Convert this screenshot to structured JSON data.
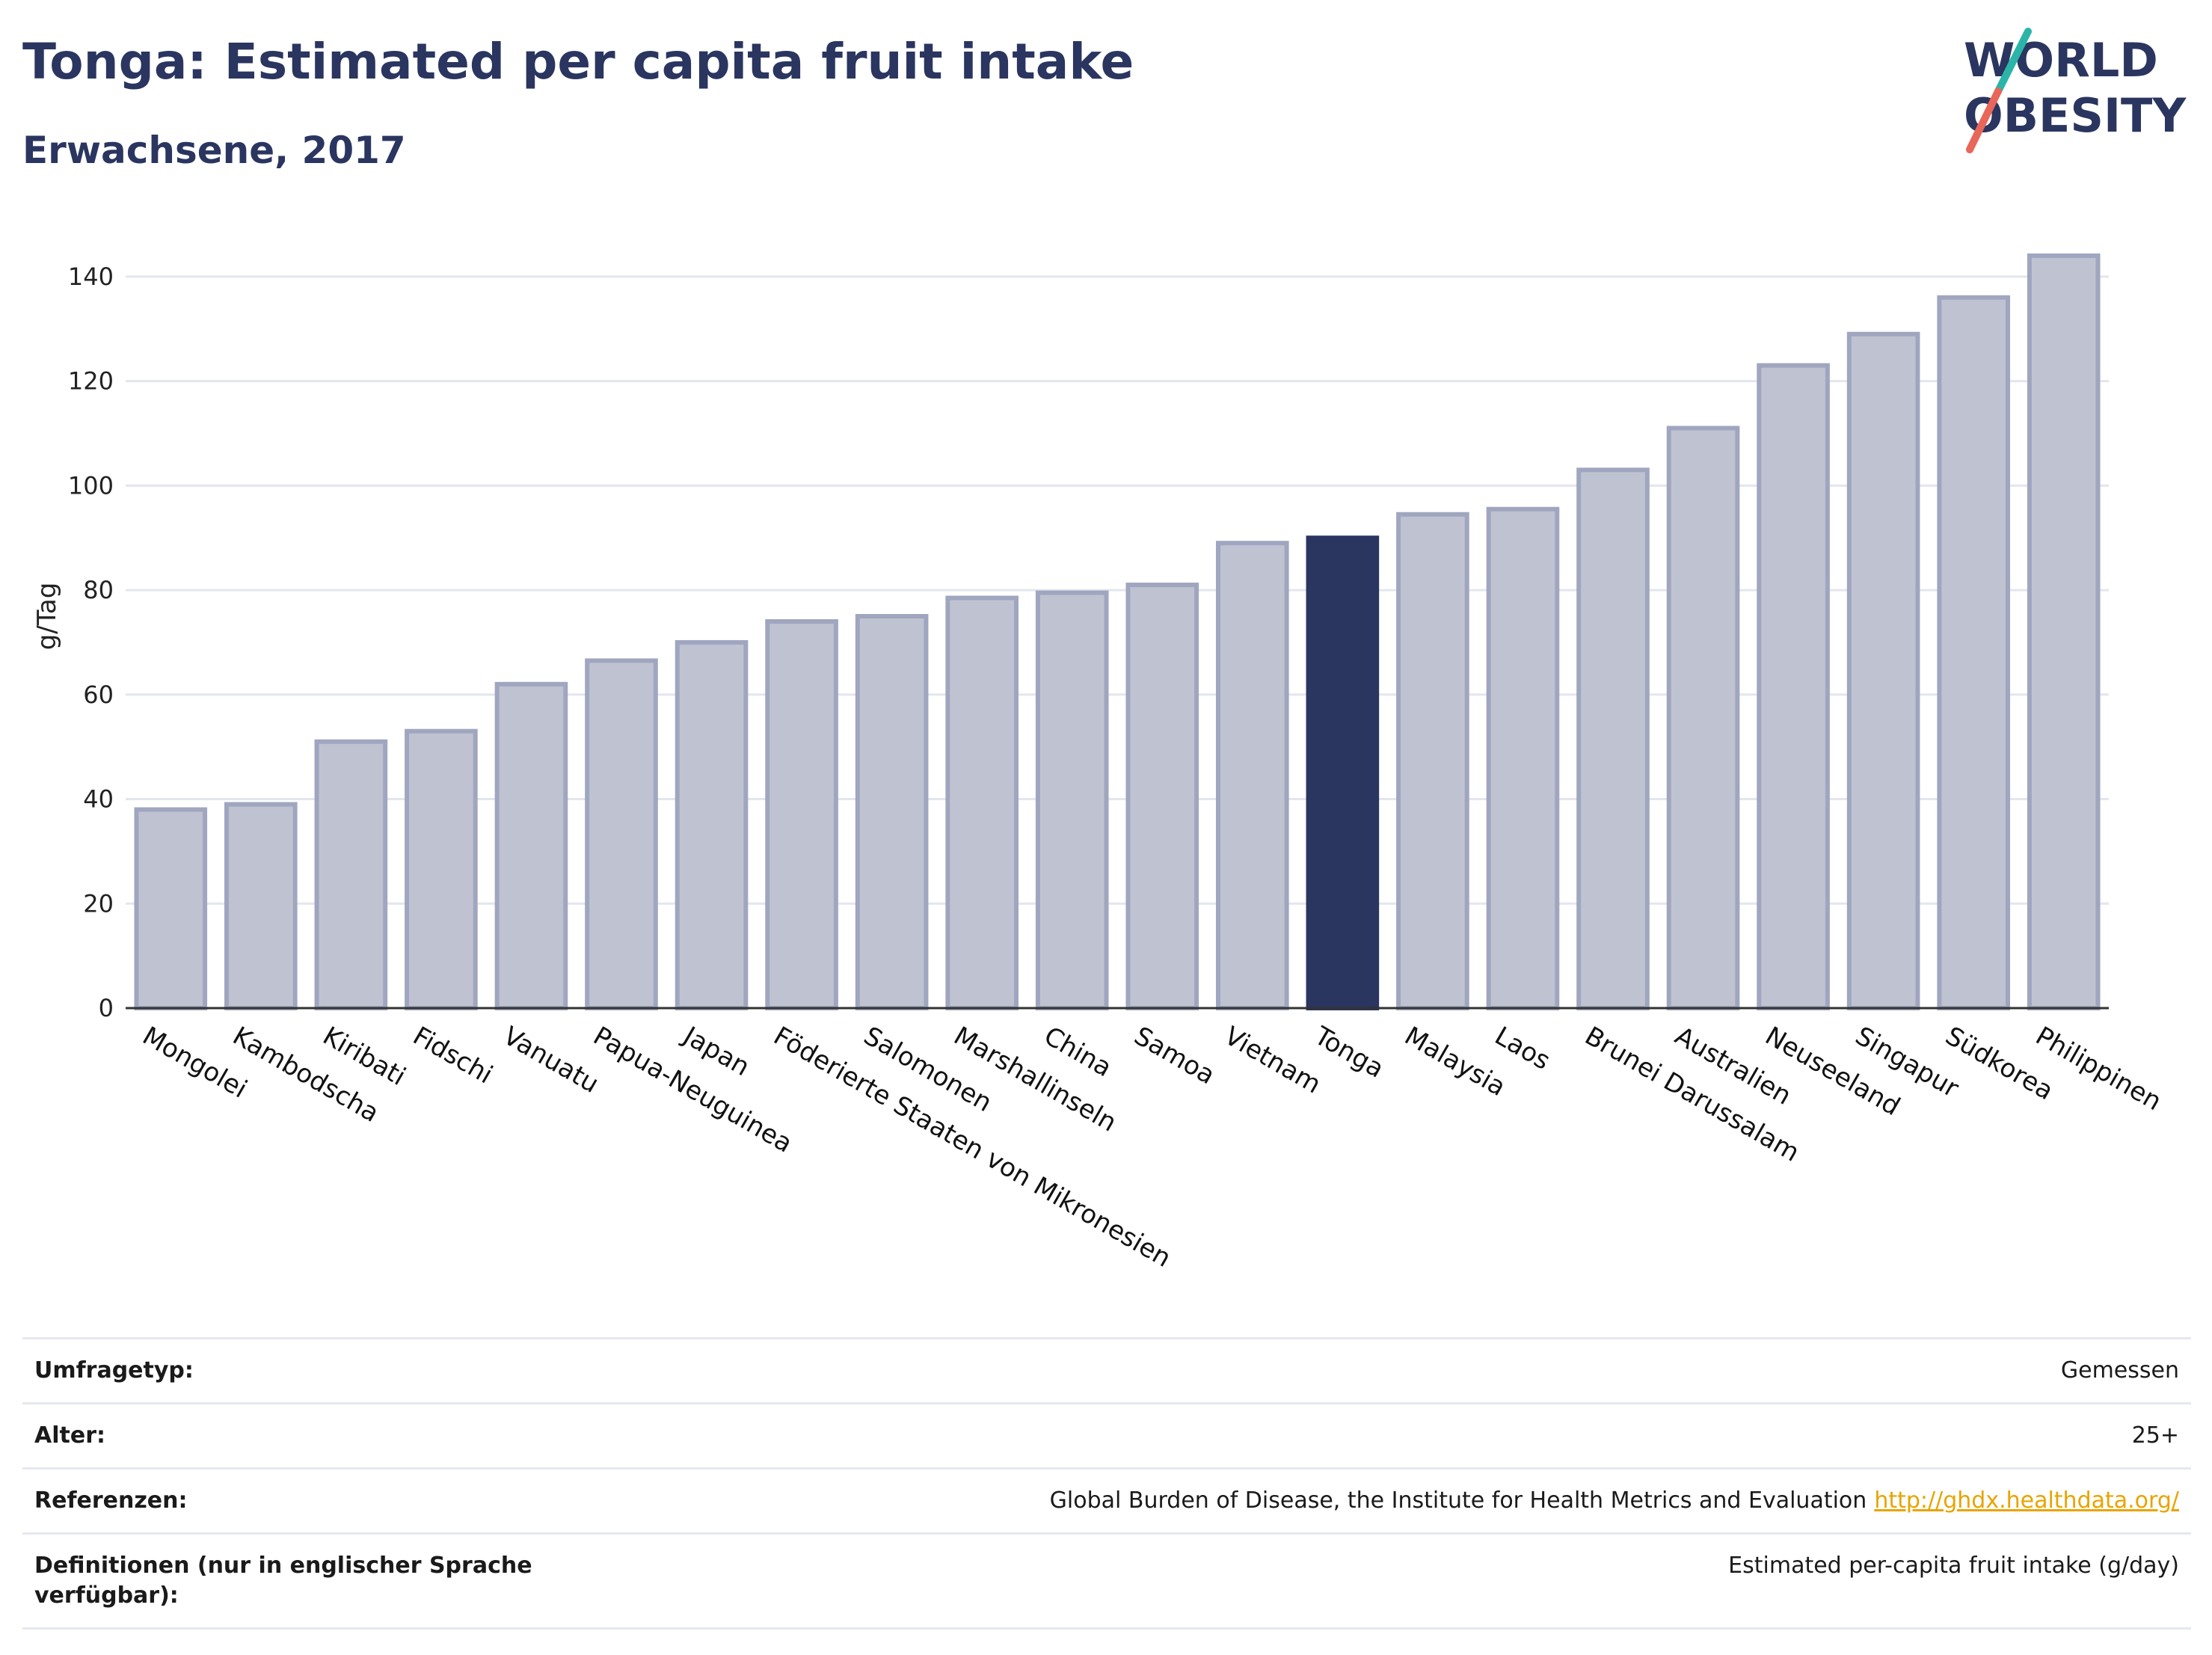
{
  "header": {
    "title": "Tonga: Estimated per capita fruit intake",
    "subtitle": "Erwachsene, 2017"
  },
  "logo": {
    "line1": "WORLD",
    "line2": "OBESITY",
    "colors": {
      "text": "#2a3560",
      "slash_teal": "#2bb5a8",
      "slash_red": "#e8665a"
    }
  },
  "chart_data": {
    "type": "bar",
    "ylabel": "g/Tag",
    "ylim": [
      0,
      150
    ],
    "yticks": [
      0,
      20,
      40,
      60,
      80,
      100,
      120,
      140
    ],
    "grid": true,
    "categories": [
      "Mongolei",
      "Kambodscha",
      "Kiribati",
      "Fidschi",
      "Vanuatu",
      "Papua-Neuguinea",
      "Japan",
      "Föderierte Staaten von Mikronesien",
      "Salomonen",
      "Marshallinseln",
      "China",
      "Samoa",
      "Vietnam",
      "Tonga",
      "Malaysia",
      "Laos",
      "Brunei Darussalam",
      "Australien",
      "Neuseeland",
      "Singapur",
      "Südkorea",
      "Philippinen"
    ],
    "values": [
      38,
      39,
      51,
      53,
      62,
      66.5,
      70,
      74,
      75,
      78.5,
      79.5,
      81,
      89,
      90,
      94.5,
      95.5,
      103,
      111,
      123,
      129,
      136,
      144
    ],
    "highlight": "Tonga",
    "colors": {
      "bar": "#bfc3d1",
      "bar_border": "#a0a6bf",
      "highlight": "#2a3560",
      "grid": "#e4e6ee",
      "axis": "#333333"
    }
  },
  "info": {
    "rows": [
      {
        "label": "Umfragetyp:",
        "value": "Gemessen",
        "link": ""
      },
      {
        "label": "Alter:",
        "value": "25+",
        "link": ""
      },
      {
        "label": "Referenzen:",
        "value": "Global Burden of Disease, the Institute for Health Metrics and Evaluation",
        "link": "http://ghdx.healthdata.org/"
      },
      {
        "label": "Definitionen (nur in englischer Sprache verfügbar):",
        "value": "Estimated per-capita fruit intake (g/day)",
        "link": ""
      }
    ]
  }
}
